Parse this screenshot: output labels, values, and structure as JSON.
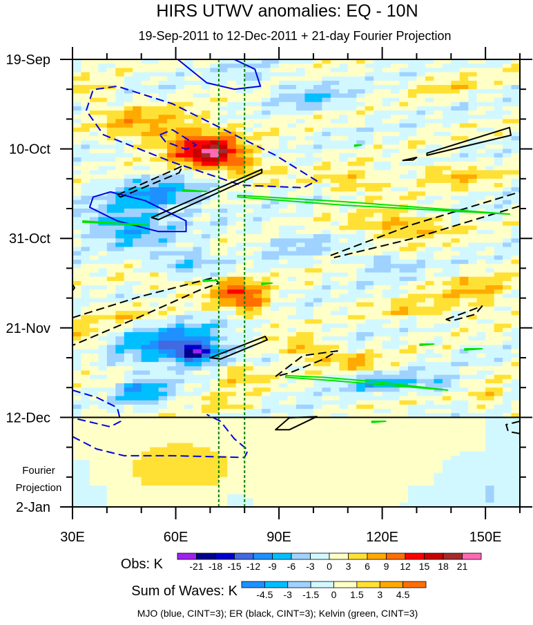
{
  "chart_data": {
    "type": "heatmap",
    "title": "HIRS UTWV anomalies: EQ - 10N",
    "subtitle": "19-Sep-2011 to 12-Dec-2011 + 21-day Fourier Projection",
    "xlabel": "",
    "ylabel": "",
    "x_range_lon": [
      30,
      160
    ],
    "x_ticks": [
      {
        "value": 30,
        "label": "30E"
      },
      {
        "value": 60,
        "label": "60E"
      },
      {
        "value": 90,
        "label": "90E"
      },
      {
        "value": 120,
        "label": "120E"
      },
      {
        "value": 150,
        "label": "150E"
      }
    ],
    "x_minor_step": 10,
    "y_range_days": [
      0,
      105
    ],
    "y_ticks": [
      {
        "value": 0,
        "label": "19-Sep"
      },
      {
        "value": 21,
        "label": "10-Oct"
      },
      {
        "value": 42,
        "label": "31-Oct"
      },
      {
        "value": 63,
        "label": "21-Nov"
      },
      {
        "value": 84,
        "label": "12-Dec"
      },
      {
        "value": 105,
        "label": "2-Jan"
      }
    ],
    "y_minor_step": 7,
    "projection_label": [
      "Fourier",
      "Projection"
    ],
    "projection_start_day": 84,
    "reference_lons": [
      72.5,
      80
    ],
    "obs_colorbar": {
      "label": "Obs: K",
      "levels": [
        -21,
        -18,
        -15,
        -12,
        -9,
        -6,
        -3,
        0,
        3,
        6,
        9,
        12,
        15,
        18,
        21
      ],
      "colors": [
        "#a020f0",
        "#00008b",
        "#0000cd",
        "#4169e1",
        "#1e90ff",
        "#00bfff",
        "#a0d2ff",
        "#d2f8ff",
        "#ffffc8",
        "#ffe135",
        "#ffaa00",
        "#ff6e00",
        "#ff0000",
        "#c80000",
        "#a52a2a",
        "#ff69b4"
      ]
    },
    "waves_colorbar": {
      "label": "Sum of Waves: K",
      "levels": [
        -4.5,
        -3,
        -1.5,
        0,
        1.5,
        3,
        4.5
      ],
      "colors": [
        "#1e90ff",
        "#00bfff",
        "#a0d2ff",
        "#d2f8ff",
        "#ffffc8",
        "#ffe135",
        "#ffaa00",
        "#ff6e00"
      ]
    },
    "footer": "MJO (blue, CINT=3); ER (black, CINT=3); Kelvin (green, CINT=3)",
    "anomaly_blobs": [
      [
        70,
        22,
        9,
        3.5,
        17
      ],
      [
        60,
        17,
        16,
        5,
        7
      ],
      [
        80,
        25,
        10,
        3,
        6
      ],
      [
        45,
        14,
        8,
        3,
        4
      ],
      [
        55,
        32,
        14,
        4,
        -9
      ],
      [
        45,
        39,
        12,
        4,
        -9
      ],
      [
        62,
        48,
        10,
        4,
        -7
      ],
      [
        60,
        67,
        16,
        5,
        -11
      ],
      [
        66,
        69,
        6,
        2,
        -14
      ],
      [
        78,
        55,
        7,
        4,
        10
      ],
      [
        84,
        58,
        5,
        3,
        6
      ],
      [
        60,
        52,
        12,
        3,
        5
      ],
      [
        45,
        60,
        10,
        3,
        4
      ],
      [
        125,
        39,
        14,
        3,
        8
      ],
      [
        112,
        29,
        10,
        3,
        6
      ],
      [
        140,
        27,
        12,
        2.5,
        6
      ],
      [
        148,
        55,
        12,
        4,
        6
      ],
      [
        130,
        59,
        10,
        2.5,
        5
      ],
      [
        98,
        68,
        10,
        3,
        7
      ],
      [
        112,
        71,
        8,
        2,
        5
      ],
      [
        78,
        74,
        8,
        3,
        6
      ],
      [
        50,
        78,
        7,
        3,
        -9
      ],
      [
        75,
        81,
        6,
        2,
        4
      ],
      [
        120,
        76,
        12,
        2,
        -7
      ],
      [
        138,
        76,
        8,
        2,
        -5
      ],
      [
        100,
        86,
        8,
        2,
        -4
      ],
      [
        60,
        89,
        16,
        3,
        8
      ],
      [
        38,
        86,
        8,
        3,
        5
      ],
      [
        100,
        9,
        10,
        3,
        -5
      ],
      [
        82,
        4,
        8,
        3,
        -3
      ],
      [
        140,
        6,
        10,
        3,
        3
      ],
      [
        35,
        8,
        6,
        3,
        4
      ],
      [
        150,
        79,
        6,
        3,
        5
      ],
      [
        34,
        66,
        4,
        6,
        4
      ],
      [
        120,
        48,
        10,
        2,
        -5
      ],
      [
        95,
        43,
        10,
        3,
        -4
      ]
    ],
    "projection_blobs": [
      [
        60,
        96,
        30,
        14,
        1.4
      ],
      [
        110,
        96,
        25,
        12,
        0.9
      ],
      [
        145,
        100,
        12,
        8,
        -1.2
      ],
      [
        33,
        100,
        6,
        10,
        -1.3
      ],
      [
        78,
        104,
        4,
        3,
        -1.2
      ]
    ],
    "contours": [
      {
        "wave": "MJO",
        "color": "#0000e0",
        "dashed": false,
        "closed": false,
        "points": [
          [
            60.6,
            0
          ],
          [
            69,
            5.5
          ],
          [
            77,
            7
          ],
          [
            84.6,
            6.3
          ],
          [
            83,
            2.3
          ],
          [
            77,
            0
          ]
        ]
      },
      {
        "wave": "MJO",
        "color": "#0000e0",
        "dashed": true,
        "closed": true,
        "points": [
          [
            34,
            12
          ],
          [
            36,
            7.1
          ],
          [
            43,
            6.3
          ],
          [
            59,
            10.4
          ],
          [
            89,
            22.5
          ],
          [
            101,
            28.5
          ],
          [
            97,
            30.1
          ],
          [
            79,
            29.5
          ],
          [
            59,
            24.1
          ],
          [
            39,
            17.7
          ]
        ]
      },
      {
        "wave": "MJO",
        "color": "#0000e0",
        "dashed": true,
        "closed": true,
        "points": [
          [
            55.4,
            17.7
          ],
          [
            59,
            16.5
          ],
          [
            66,
            20.1
          ],
          [
            63,
            21.1
          ],
          [
            57,
            19.3
          ]
        ]
      },
      {
        "wave": "MJO",
        "color": "#0000e0",
        "dashed": false,
        "closed": true,
        "points": [
          [
            36,
            32.3
          ],
          [
            41,
            31.1
          ],
          [
            51,
            33.1
          ],
          [
            63,
            37.9
          ],
          [
            63,
            40.4
          ],
          [
            55,
            40.4
          ],
          [
            43,
            37.9
          ],
          [
            35,
            34.7
          ]
        ]
      },
      {
        "wave": "MJO",
        "color": "#0000e0",
        "dashed": true,
        "closed": false,
        "points": [
          [
            30,
            77.6
          ],
          [
            37,
            79.3
          ],
          [
            43,
            81.7
          ],
          [
            44,
            84.9
          ],
          [
            41,
            86.2
          ],
          [
            30,
            84.1
          ]
        ]
      },
      {
        "wave": "MJO",
        "color": "#0000e0",
        "dashed": true,
        "closed": false,
        "points": [
          [
            30,
            88.5
          ],
          [
            37,
            91.4
          ],
          [
            45,
            93
          ],
          [
            59,
            93
          ],
          [
            80,
            93.4
          ],
          [
            81,
            91.7
          ],
          [
            77,
            89
          ],
          [
            73,
            84.9
          ],
          [
            69,
            83.3
          ]
        ]
      },
      {
        "wave": "ER",
        "color": "#000000",
        "dashed": true,
        "closed": true,
        "points": [
          [
            43,
            31.8
          ],
          [
            62,
            25
          ],
          [
            61,
            26.6
          ],
          [
            44,
            32.3
          ]
        ]
      },
      {
        "wave": "ER",
        "color": "#000000",
        "dashed": false,
        "closed": true,
        "points": [
          [
            53,
            37.1
          ],
          [
            85,
            25.8
          ],
          [
            85,
            26.6
          ],
          [
            55,
            37.6
          ]
        ]
      },
      {
        "wave": "ER",
        "color": "#000000",
        "dashed": false,
        "closed": true,
        "points": [
          [
            133,
            22
          ],
          [
            157,
            16
          ],
          [
            157.4,
            17.8
          ],
          [
            133,
            22.5
          ]
        ]
      },
      {
        "wave": "ER",
        "color": "#000000",
        "dashed": false,
        "closed": true,
        "points": [
          [
            126,
            23.7
          ],
          [
            130,
            23
          ],
          [
            129,
            23.6
          ]
        ]
      },
      {
        "wave": "ER",
        "color": "#000000",
        "dashed": true,
        "closed": false,
        "points": [
          [
            105,
            46
          ],
          [
            129,
            38.7
          ],
          [
            160,
            31.1
          ]
        ]
      },
      {
        "wave": "ER",
        "color": "#000000",
        "dashed": true,
        "closed": false,
        "points": [
          [
            160,
            34.4
          ],
          [
            129,
            42
          ],
          [
            106,
            46.5
          ]
        ]
      },
      {
        "wave": "ER",
        "color": "#000000",
        "dashed": true,
        "closed": false,
        "points": [
          [
            30,
            60.6
          ],
          [
            49,
            55.8
          ],
          [
            71,
            51.2
          ],
          [
            72.6,
            52.5
          ],
          [
            67,
            54.1
          ],
          [
            49,
            60.6
          ],
          [
            30,
            67.1
          ]
        ]
      },
      {
        "wave": "ER",
        "color": "#000000",
        "dashed": true,
        "closed": true,
        "points": [
          [
            138.6,
            61
          ],
          [
            149,
            57.9
          ],
          [
            147,
            59.8
          ],
          [
            140,
            61.4
          ]
        ]
      },
      {
        "wave": "ER",
        "color": "#000000",
        "dashed": false,
        "closed": true,
        "points": [
          [
            70,
            70
          ],
          [
            86,
            65
          ],
          [
            86.6,
            65.8
          ],
          [
            73,
            70.3
          ]
        ]
      },
      {
        "wave": "ER",
        "color": "#000000",
        "dashed": true,
        "closed": true,
        "points": [
          [
            89,
            74.4
          ],
          [
            97,
            69.5
          ],
          [
            107,
            68.4
          ],
          [
            103,
            70.3
          ],
          [
            93,
            73.6
          ]
        ]
      },
      {
        "wave": "ER",
        "color": "#000000",
        "dashed": false,
        "closed": true,
        "points": [
          [
            89,
            86.9
          ],
          [
            93,
            84.1
          ],
          [
            101,
            83.8
          ],
          [
            93,
            86.9
          ]
        ]
      },
      {
        "wave": "ER",
        "color": "#000000",
        "dashed": true,
        "closed": false,
        "points": [
          [
            160,
            84.9
          ],
          [
            156,
            85.7
          ],
          [
            156.6,
            87.3
          ],
          [
            160,
            87.8
          ]
        ]
      },
      {
        "wave": "ER",
        "color": "#000000",
        "dashed": true,
        "closed": false,
        "points": [
          [
            30,
            52.8
          ],
          [
            30.6,
            53.6
          ],
          [
            30,
            54.3
          ]
        ]
      },
      {
        "wave": "Kelvin",
        "color": "#00e000",
        "dashed": false,
        "closed": true,
        "points": [
          [
            78,
            31.9
          ],
          [
            109,
            33.4
          ],
          [
            157,
            36.3
          ],
          [
            109,
            34.2
          ],
          [
            78,
            32.3
          ]
        ]
      },
      {
        "wave": "Kelvin",
        "color": "#00e000",
        "dashed": false,
        "closed": true,
        "points": [
          [
            33,
            37.9
          ],
          [
            52,
            38.9
          ],
          [
            33,
            38.2
          ]
        ]
      },
      {
        "wave": "Kelvin",
        "color": "#00e000",
        "dashed": false,
        "closed": true,
        "points": [
          [
            62,
            30.6
          ],
          [
            69,
            31
          ],
          [
            62,
            30.9
          ]
        ]
      },
      {
        "wave": "Kelvin",
        "color": "#00e000",
        "dashed": false,
        "closed": true,
        "points": [
          [
            92,
            74.2
          ],
          [
            103,
            74.6
          ],
          [
            118,
            75.6
          ],
          [
            139,
            77.6
          ],
          [
            118,
            76.2
          ],
          [
            103,
            75.2
          ],
          [
            92,
            74.6
          ]
        ]
      },
      {
        "wave": "Kelvin",
        "color": "#00e000",
        "dashed": false,
        "closed": true,
        "points": [
          [
            131,
            66.8
          ],
          [
            135,
            66.8
          ],
          [
            131,
            67.1
          ]
        ]
      },
      {
        "wave": "Kelvin",
        "color": "#00e000",
        "dashed": false,
        "closed": true,
        "points": [
          [
            144,
            67.9
          ],
          [
            149,
            67.9
          ],
          [
            144,
            68.2
          ]
        ]
      },
      {
        "wave": "Kelvin",
        "color": "#00e000",
        "dashed": false,
        "closed": true,
        "points": [
          [
            112,
            20.1
          ],
          [
            114,
            20.1
          ],
          [
            112,
            20.4
          ]
        ]
      },
      {
        "wave": "Kelvin",
        "color": "#00e000",
        "dashed": false,
        "closed": true,
        "points": [
          [
            85,
            52.5
          ],
          [
            88,
            52.5
          ],
          [
            85,
            52.8
          ]
        ]
      },
      {
        "wave": "Kelvin",
        "color": "#00e000",
        "dashed": false,
        "closed": true,
        "points": [
          [
            117,
            84.9
          ],
          [
            121,
            84.9
          ],
          [
            117,
            85.2
          ]
        ]
      },
      {
        "wave": "Kelvin",
        "color": "#00e000",
        "dashed": false,
        "closed": true,
        "points": [
          [
            68,
            51.8
          ],
          [
            72,
            51.8
          ],
          [
            68,
            52.1
          ]
        ]
      }
    ]
  }
}
